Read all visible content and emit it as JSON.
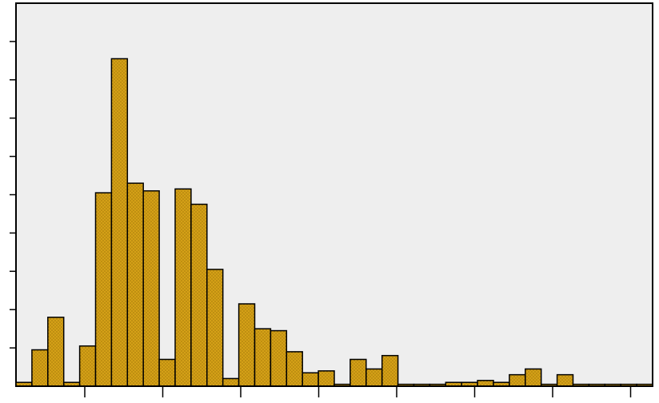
{
  "chart_data": {
    "type": "bar",
    "title": "",
    "xlabel": "",
    "ylabel": "",
    "grid": false,
    "legend": "none",
    "ylim": [
      0,
      100
    ],
    "y_ticks": [
      10,
      20,
      30,
      40,
      50,
      60,
      70,
      80,
      90
    ],
    "x_tick_count": 8,
    "values": [
      1,
      9.5,
      18,
      1,
      10.5,
      50.5,
      85.5,
      53,
      51,
      7,
      51.5,
      47.5,
      30.5,
      2,
      21.5,
      15,
      14.5,
      9,
      3.5,
      4,
      0.5,
      7,
      4.5,
      8,
      0.5,
      0.5,
      0.5,
      1,
      1,
      1.5,
      1,
      3,
      4.5,
      0.5,
      3,
      0.5,
      0.5,
      0.5,
      0.5,
      0.5
    ],
    "colors": {
      "bar_fill": "#d4a017",
      "bar_stroke": "#000000",
      "plot_bg": "#eeeeee",
      "page_bg": "#ffffff"
    }
  }
}
